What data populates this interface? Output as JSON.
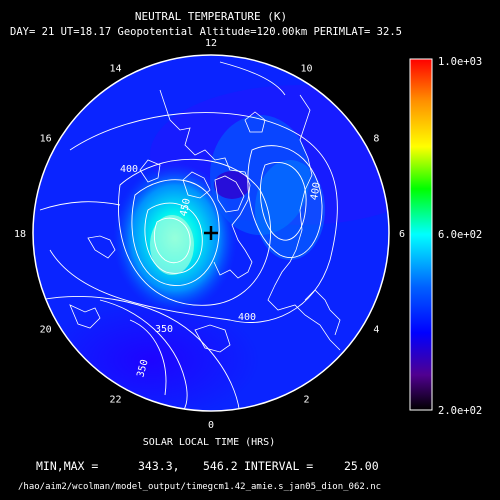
{
  "chart_data": {
    "type": "heatmap",
    "projection": "polar",
    "title": "NEUTRAL TEMPERATURE (K)",
    "subtitle": "DAY= 21 UT=18.17 Geopotential Altitude=120.00km PERIMLAT= 32.5",
    "xlabel": "SOLAR LOCAL TIME (HRS)",
    "local_time_labels": [
      "12",
      "10",
      "8",
      "6",
      "4",
      "2",
      "0",
      "22",
      "20",
      "18",
      "16",
      "14"
    ],
    "contour_labels": [
      "400",
      "400",
      "400",
      "450",
      "350",
      "350"
    ],
    "colorbar": {
      "ticks": [
        "1.0e+03",
        "6.0e+02",
        "2.0e+02"
      ],
      "range": [
        200,
        1000
      ],
      "colors": [
        "#ff0000",
        "#ffa000",
        "#ffff00",
        "#00ff00",
        "#00ffff",
        "#0000ff",
        "#400090",
        "#000000"
      ]
    },
    "stats": {
      "minmax_label": "MIN,MAX =",
      "min": "343.3,",
      "max": "546.2",
      "interval_label": "INTERVAL =",
      "interval": "25.00"
    },
    "file_path": "/hao/aim2/wcolman/model_output/timegcm1.42_amie.s_jan05_dion_062.nc"
  }
}
